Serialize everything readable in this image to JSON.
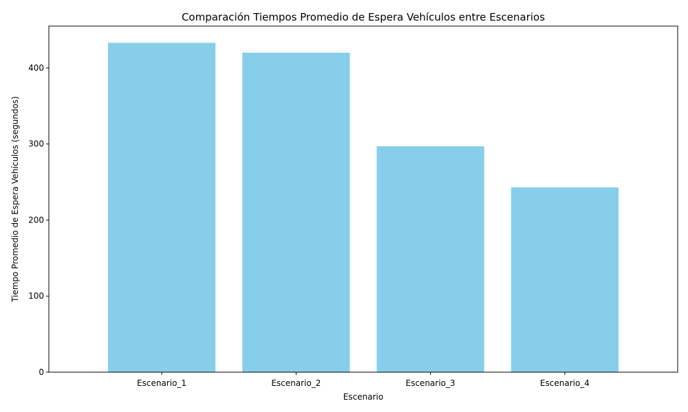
{
  "chart_data": {
    "type": "bar",
    "title": "Comparación Tiempos Promedio de Espera Vehículos entre Escenarios",
    "xlabel": "Escenario",
    "ylabel": "Tiempo Promedio de Espera Vehículos (segundos)",
    "categories": [
      "Escenario_1",
      "Escenario_2",
      "Escenario_3",
      "Escenario_4"
    ],
    "values": [
      433,
      420,
      297,
      243
    ],
    "ylim": [
      0,
      455
    ],
    "yticks": [
      0,
      100,
      200,
      300,
      400
    ],
    "bar_color": "#87CEEB",
    "grid": false,
    "legend": "none"
  }
}
